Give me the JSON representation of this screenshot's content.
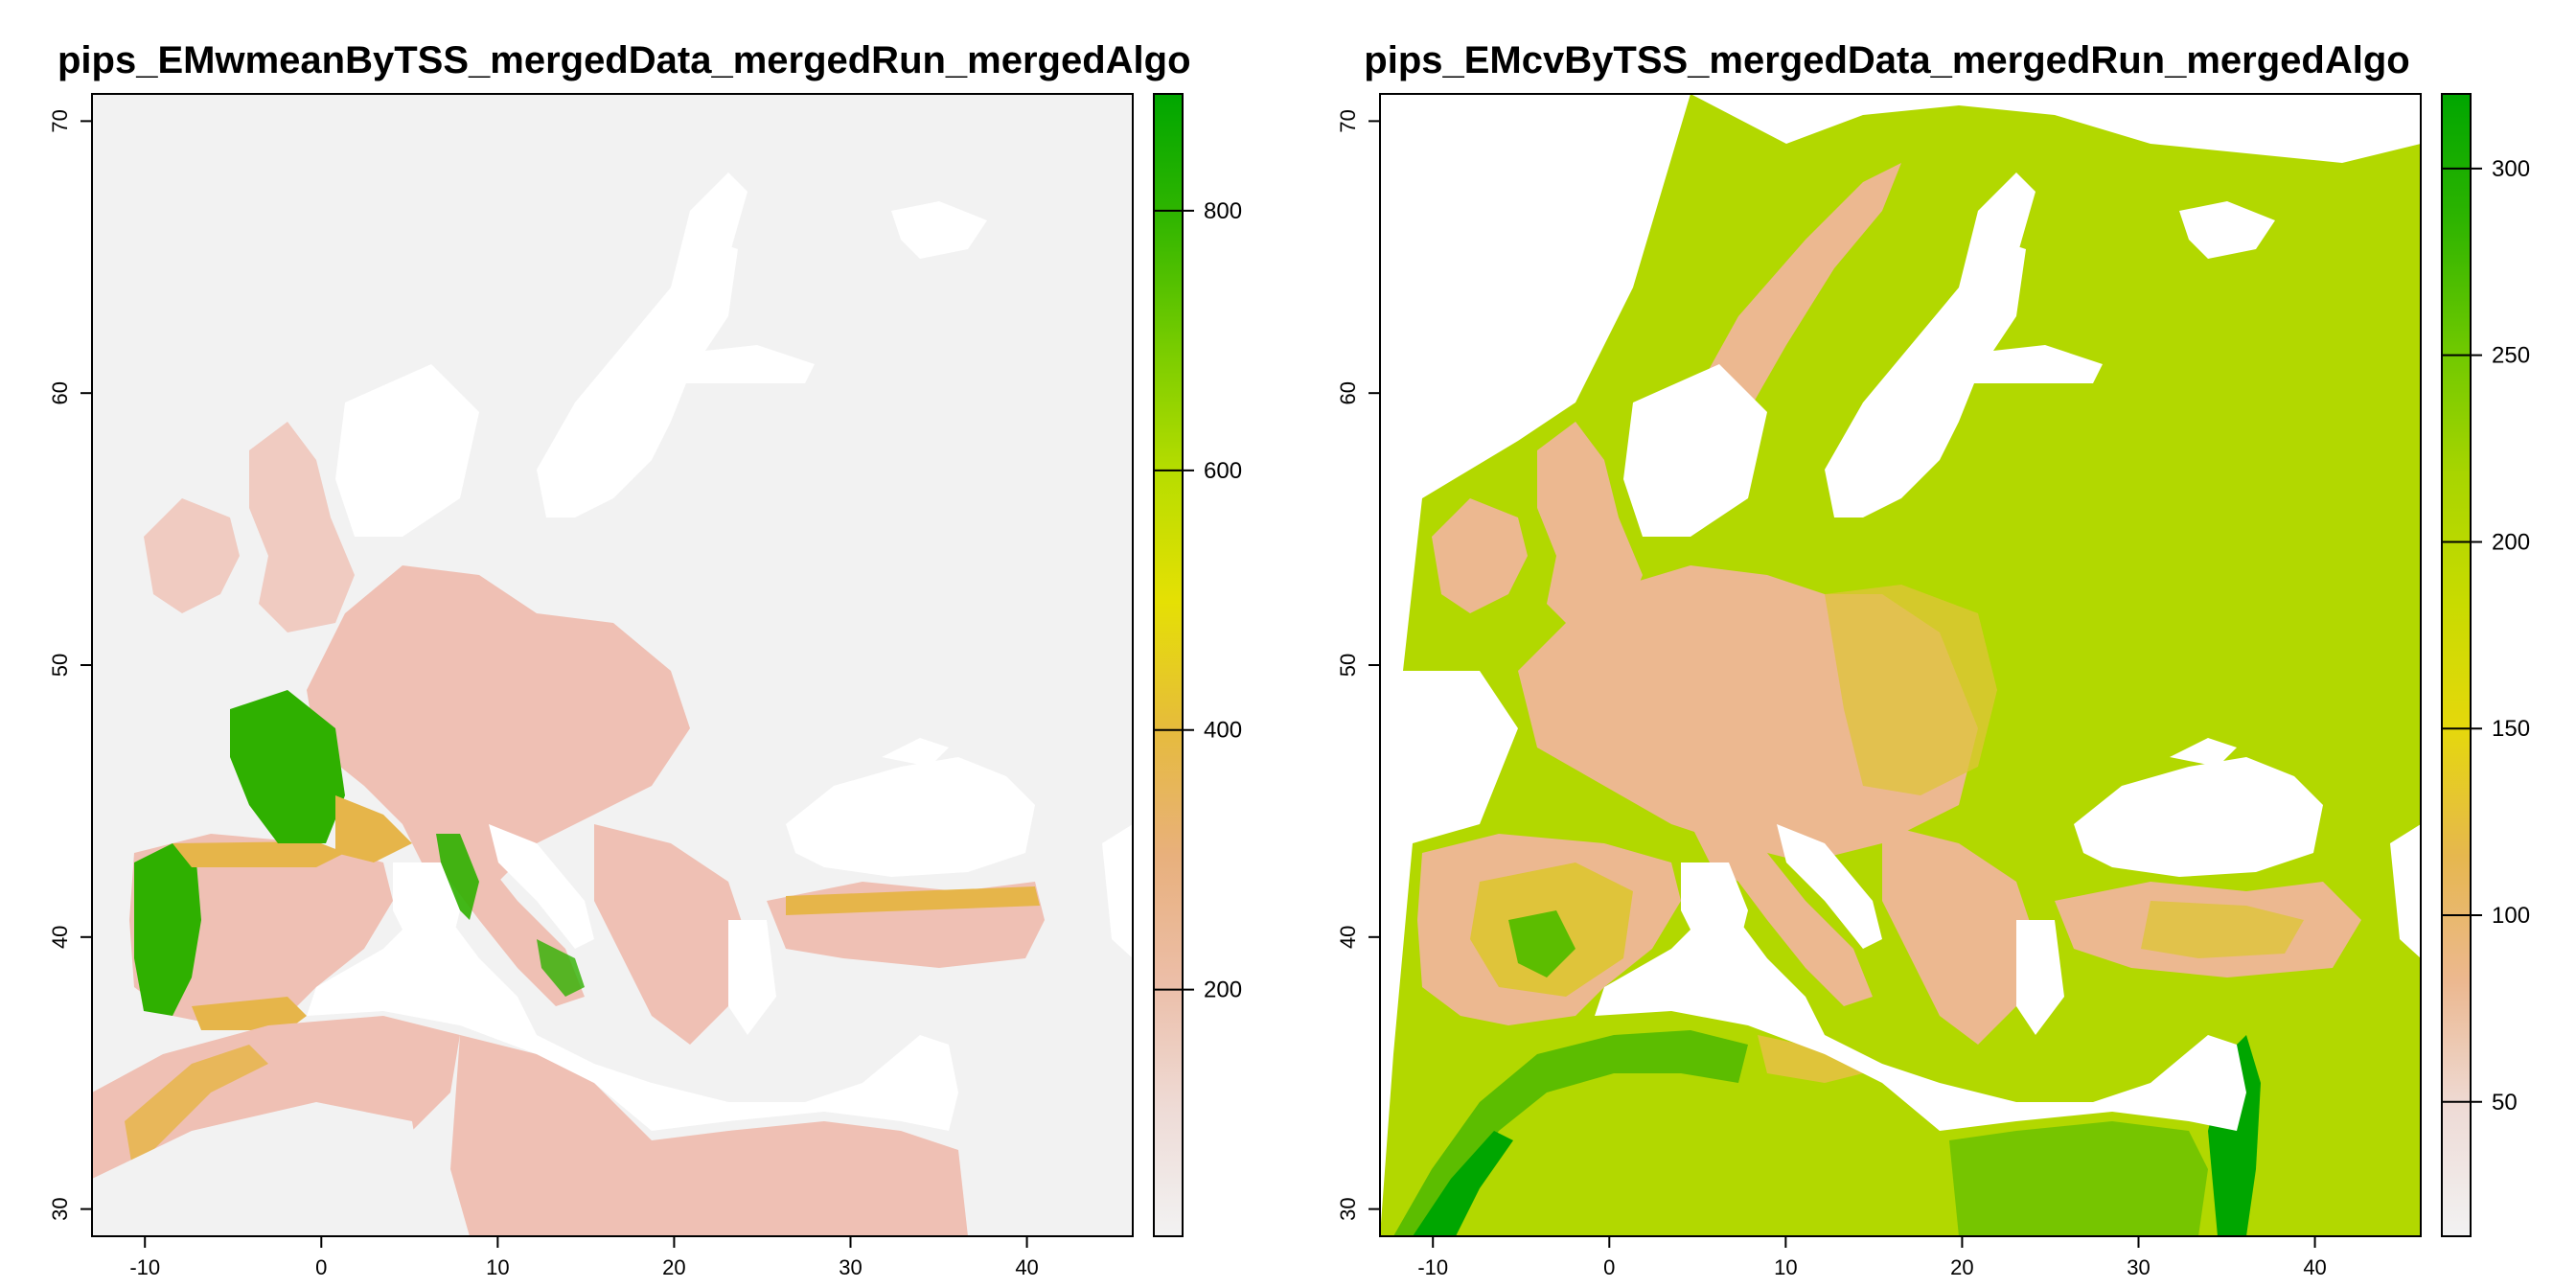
{
  "panels": [
    {
      "title": "pips_EMwmeanByTSS_mergedData_mergedRun_mergedAlgo",
      "x_ticks": [
        "-10",
        "0",
        "10",
        "20",
        "30",
        "40"
      ],
      "y_ticks": [
        "30",
        "40",
        "50",
        "60",
        "70"
      ],
      "colorbar": {
        "ticks": [
          "200",
          "400",
          "600",
          "800"
        ],
        "tick_values": [
          200,
          400,
          600,
          800
        ],
        "range": [
          10,
          890
        ],
        "colors": [
          "#f2f2f2",
          "#eedbd6",
          "#ecbea8",
          "#e8b07c",
          "#e6bb3c",
          "#e5e004",
          "#b8dd00",
          "#78cc00",
          "#32b600",
          "#00a600"
        ]
      },
      "palette": {
        "background": "#f2f2f2",
        "low": "#efc0b4",
        "mid": "#e6b54a",
        "high": "#2fb000",
        "peak": "#00a600",
        "water": "#ffffff"
      }
    },
    {
      "title": "pips_EMcvByTSS_mergedData_mergedRun_mergedAlgo",
      "x_ticks": [
        "-10",
        "0",
        "10",
        "20",
        "30",
        "40"
      ],
      "y_ticks": [
        "30",
        "40",
        "50",
        "60",
        "70"
      ],
      "colorbar": {
        "ticks": [
          "50",
          "100",
          "150",
          "200",
          "250",
          "300"
        ],
        "tick_values": [
          50,
          100,
          150,
          200,
          250,
          300
        ],
        "range": [
          14,
          320
        ],
        "colors": [
          "#f2f2f2",
          "#eedbd6",
          "#ecb890",
          "#e6b74e",
          "#e5d80c",
          "#c8db00",
          "#a8d500",
          "#6ec800",
          "#2eb400",
          "#00a600"
        ]
      },
      "palette": {
        "background": "#b2d800",
        "low": "#ecb890",
        "mid": "#dfc43a",
        "high": "#5cbd00",
        "peak": "#00a600",
        "water": "#ffffff"
      }
    }
  ]
}
